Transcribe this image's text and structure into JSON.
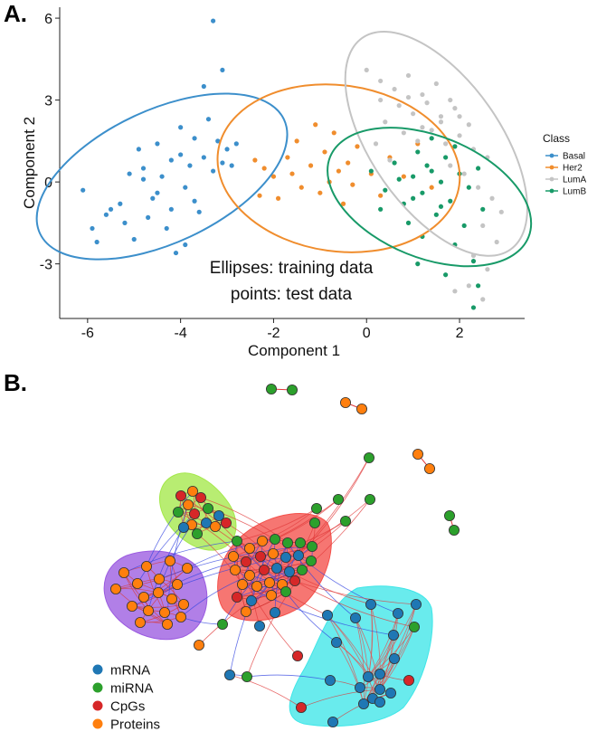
{
  "panel_a_label": "A.",
  "panel_b_label": "B.",
  "chart_data": [
    {
      "type": "scatter",
      "title": "",
      "xlabel": "Component 1",
      "ylabel": "Component 2",
      "xlim": [
        -6.6,
        3.4
      ],
      "ylim": [
        -5.0,
        6.4
      ],
      "xticks": [
        -6,
        -4,
        -2,
        0,
        2
      ],
      "xtick_labels": [
        "-6",
        "-4",
        "-2",
        "0",
        "2"
      ],
      "yticks": [
        -3,
        0,
        3,
        6
      ],
      "ytick_labels": [
        "-3",
        "0",
        "3",
        "6"
      ],
      "grid": false,
      "legend_title": "Class",
      "legend_position": "right",
      "annotations": [
        "Ellipses: training data",
        "points: test data"
      ],
      "series": [
        {
          "name": "Basal",
          "color": "#3C8FCB",
          "ellipse": {
            "cx": -4.4,
            "cy": 0.2,
            "rx": 3.65,
            "ry": 1.8,
            "angle_deg": 25
          },
          "points": [
            [
              -6.1,
              -0.3
            ],
            [
              -5.8,
              -2.2
            ],
            [
              -5.6,
              -1.2
            ],
            [
              -5.5,
              -1.0
            ],
            [
              -5.3,
              -0.8
            ],
            [
              -5.2,
              -1.5
            ],
            [
              -5.0,
              -2.1
            ],
            [
              -4.9,
              1.2
            ],
            [
              -4.8,
              0.5
            ],
            [
              -4.7,
              -1.3
            ],
            [
              -4.6,
              -0.6
            ],
            [
              -4.5,
              1.4
            ],
            [
              -4.4,
              0.2
            ],
            [
              -4.3,
              -1.7
            ],
            [
              -4.2,
              0.8
            ],
            [
              -4.1,
              -2.6
            ],
            [
              -4.0,
              1.0
            ],
            [
              -3.9,
              -0.2
            ],
            [
              -3.8,
              0.6
            ],
            [
              -3.7,
              1.6
            ],
            [
              -3.6,
              -1.1
            ],
            [
              -3.5,
              0.9
            ],
            [
              -3.4,
              2.3
            ],
            [
              -3.3,
              0.4
            ],
            [
              -3.2,
              1.5
            ],
            [
              -3.1,
              0.7
            ],
            [
              -3.0,
              1.2
            ],
            [
              -2.9,
              0.6
            ],
            [
              -2.8,
              1.4
            ],
            [
              -3.3,
              5.9
            ],
            [
              -3.1,
              4.1
            ],
            [
              -3.5,
              3.5
            ],
            [
              -4.8,
              0.1
            ],
            [
              -4.5,
              -0.4
            ],
            [
              -4.2,
              -1.0
            ],
            [
              -3.7,
              -0.7
            ],
            [
              -5.1,
              0.3
            ],
            [
              -4.0,
              2.0
            ],
            [
              -3.9,
              -2.3
            ],
            [
              -5.9,
              -1.7
            ]
          ]
        },
        {
          "name": "Her2",
          "color": "#F08D2D",
          "ellipse": {
            "cx": -0.6,
            "cy": 0.5,
            "rx": 3.3,
            "ry": 2.25,
            "angle_deg": -8
          },
          "points": [
            [
              -2.4,
              0.8
            ],
            [
              -2.2,
              0.5
            ],
            [
              -2.0,
              0.2
            ],
            [
              -1.9,
              -0.6
            ],
            [
              -1.7,
              0.9
            ],
            [
              -1.6,
              0.3
            ],
            [
              -1.5,
              1.5
            ],
            [
              -1.4,
              -0.2
            ],
            [
              -1.2,
              0.6
            ],
            [
              -1.0,
              -0.4
            ],
            [
              -0.9,
              1.1
            ],
            [
              -0.8,
              0.0
            ],
            [
              -0.6,
              0.4
            ],
            [
              -0.5,
              -0.8
            ],
            [
              -0.4,
              0.7
            ],
            [
              -0.3,
              -0.1
            ],
            [
              -0.2,
              1.3
            ],
            [
              0.1,
              0.3
            ],
            [
              0.3,
              -0.5
            ],
            [
              0.5,
              0.9
            ],
            [
              0.8,
              0.2
            ],
            [
              1.1,
              1.4
            ],
            [
              1.4,
              -0.2
            ],
            [
              -2.3,
              -0.5
            ],
            [
              -1.1,
              2.1
            ],
            [
              -0.7,
              1.8
            ]
          ]
        },
        {
          "name": "LumA",
          "color": "#C4C4C4",
          "ellipse": {
            "cx": 1.5,
            "cy": 1.4,
            "rx": 3.5,
            "ry": 1.75,
            "angle_deg": -55
          },
          "points": [
            [
              0.0,
              4.1
            ],
            [
              0.3,
              3.7
            ],
            [
              0.6,
              3.4
            ],
            [
              0.9,
              3.9
            ],
            [
              1.2,
              3.2
            ],
            [
              1.5,
              3.6
            ],
            [
              0.7,
              2.8
            ],
            [
              1.0,
              2.5
            ],
            [
              1.3,
              2.9
            ],
            [
              1.6,
              2.4
            ],
            [
              1.9,
              2.7
            ],
            [
              2.2,
              2.1
            ],
            [
              0.4,
              2.2
            ],
            [
              0.8,
              1.8
            ],
            [
              1.1,
              1.5
            ],
            [
              1.4,
              1.9
            ],
            [
              1.7,
              1.4
            ],
            [
              2.0,
              1.7
            ],
            [
              2.3,
              1.2
            ],
            [
              2.6,
              0.9
            ],
            [
              0.2,
              1.4
            ],
            [
              0.5,
              0.8
            ],
            [
              1.8,
              0.6
            ],
            [
              2.1,
              0.3
            ],
            [
              2.4,
              -0.2
            ],
            [
              2.7,
              -0.6
            ],
            [
              2.9,
              -1.1
            ],
            [
              2.5,
              -1.6
            ],
            [
              2.8,
              -2.2
            ],
            [
              2.3,
              -2.7
            ],
            [
              2.6,
              -3.2
            ],
            [
              2.2,
              -3.8
            ],
            [
              2.5,
              -4.3
            ],
            [
              1.9,
              -4.0
            ],
            [
              1.6,
              2.2
            ],
            [
              1.2,
              2.0
            ],
            [
              0.9,
              3.1
            ],
            [
              1.8,
              3.0
            ],
            [
              2.0,
              2.4
            ],
            [
              0.3,
              3.0
            ]
          ]
        },
        {
          "name": "LumB",
          "color": "#189A68",
          "ellipse": {
            "cx": 1.35,
            "cy": -0.55,
            "rx": 2.9,
            "ry": 1.65,
            "angle_deg": -22
          },
          "points": [
            [
              0.1,
              0.4
            ],
            [
              0.4,
              -0.3
            ],
            [
              0.6,
              0.7
            ],
            [
              0.8,
              -0.8
            ],
            [
              1.0,
              0.2
            ],
            [
              1.1,
              1.1
            ],
            [
              1.2,
              -0.4
            ],
            [
              1.3,
              0.6
            ],
            [
              1.5,
              -1.2
            ],
            [
              1.6,
              0.0
            ],
            [
              1.7,
              0.9
            ],
            [
              1.8,
              -0.7
            ],
            [
              2.0,
              0.3
            ],
            [
              2.1,
              -1.6
            ],
            [
              2.2,
              -0.2
            ],
            [
              2.4,
              0.5
            ],
            [
              2.5,
              -1.0
            ],
            [
              1.4,
              1.6
            ],
            [
              0.9,
              -1.5
            ],
            [
              1.9,
              -2.3
            ],
            [
              2.3,
              -2.9
            ],
            [
              1.2,
              -2.0
            ],
            [
              0.7,
              0.1
            ],
            [
              1.0,
              -0.6
            ],
            [
              1.4,
              0.4
            ],
            [
              1.6,
              -0.9
            ],
            [
              1.9,
              1.3
            ],
            [
              2.4,
              -3.8
            ],
            [
              2.3,
              -4.6
            ],
            [
              0.3,
              -1.0
            ],
            [
              1.1,
              -3.0
            ],
            [
              1.7,
              -3.4
            ]
          ]
        }
      ]
    },
    {
      "type": "network",
      "legend": [
        {
          "label": "mRNA",
          "color": "#1F77B4"
        },
        {
          "label": "miRNA",
          "color": "#2CA02C"
        },
        {
          "label": "CpGs",
          "color": "#D62728"
        },
        {
          "label": "Proteins",
          "color": "#FF7F0E"
        }
      ],
      "clusters": [
        {
          "name": "green-cluster",
          "color": "#A4E84A"
        },
        {
          "name": "purple-cluster",
          "color": "#9B5BE0"
        },
        {
          "name": "red-cluster",
          "color": "#F4504A"
        },
        {
          "name": "cyan-cluster",
          "color": "#3FE6E8"
        }
      ]
    }
  ]
}
